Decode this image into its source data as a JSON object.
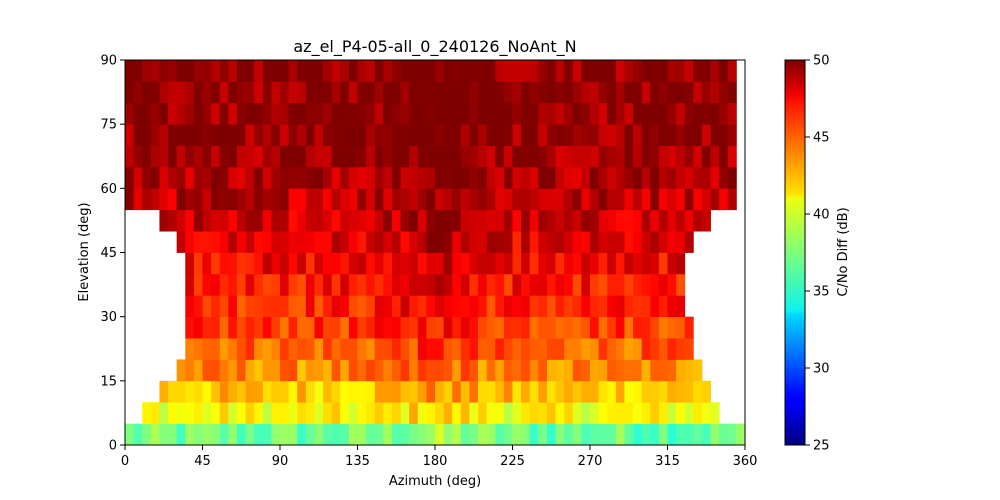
{
  "chart_data": {
    "type": "heatmap",
    "title": "az_el_P4-05-all_0_240126_NoAnt_N",
    "xlabel": "Azimuth (deg)",
    "ylabel": "Elevation (deg)",
    "colorbar_label": "C/No Diff (dB)",
    "colormap": "jet",
    "xlim": [
      0,
      360
    ],
    "ylim": [
      0,
      90
    ],
    "color_range": [
      25,
      50
    ],
    "x_ticks": [
      "0",
      "45",
      "90",
      "135",
      "180",
      "225",
      "270",
      "315",
      "360"
    ],
    "y_ticks": [
      "0",
      "15",
      "30",
      "45",
      "60",
      "75",
      "90"
    ],
    "colorbar_ticks": [
      "25",
      "30",
      "35",
      "40",
      "45",
      "50"
    ],
    "cell_size_deg": {
      "azimuth": 5,
      "elevation": 5
    },
    "elevation_bands": [
      {
        "el": 2.5,
        "az_range": [
          0,
          360
        ],
        "value": 37
      },
      {
        "el": 7.5,
        "az_range": [
          10,
          345
        ],
        "value": 40.5
      },
      {
        "el": 12.5,
        "az_range": [
          20,
          340
        ],
        "value": 42
      },
      {
        "el": 17.5,
        "az_range": [
          30,
          335
        ],
        "value": 43.5
      },
      {
        "el": 22.5,
        "az_range": [
          35,
          330
        ],
        "value": 44.5
      },
      {
        "el": 27.5,
        "az_range": [
          35,
          330
        ],
        "value": 45.5
      },
      {
        "el": 32.5,
        "az_range": [
          35,
          325
        ],
        "value": 46
      },
      {
        "el": 37.5,
        "az_range": [
          35,
          325
        ],
        "value": 46.5
      },
      {
        "el": 42.5,
        "az_range": [
          35,
          325
        ],
        "value": 47
      },
      {
        "el": 47.5,
        "az_range": [
          30,
          330
        ],
        "value": 47.5
      },
      {
        "el": 52.5,
        "az_range": [
          20,
          340
        ],
        "value": 48
      },
      {
        "el": 57.5,
        "az_range": [
          0,
          355
        ],
        "value": 48.5
      },
      {
        "el": 62.5,
        "az_range": [
          0,
          355
        ],
        "value": 49
      },
      {
        "el": 67.5,
        "az_range": [
          0,
          355
        ],
        "value": 49.3
      },
      {
        "el": 72.5,
        "az_range": [
          0,
          355
        ],
        "value": 49.5
      },
      {
        "el": 77.5,
        "az_range": [
          0,
          355
        ],
        "value": 49.6
      },
      {
        "el": 82.5,
        "az_range": [
          0,
          355
        ],
        "value": 49.7
      },
      {
        "el": 87.5,
        "az_range": [
          0,
          355
        ],
        "value": 49.7
      }
    ]
  }
}
